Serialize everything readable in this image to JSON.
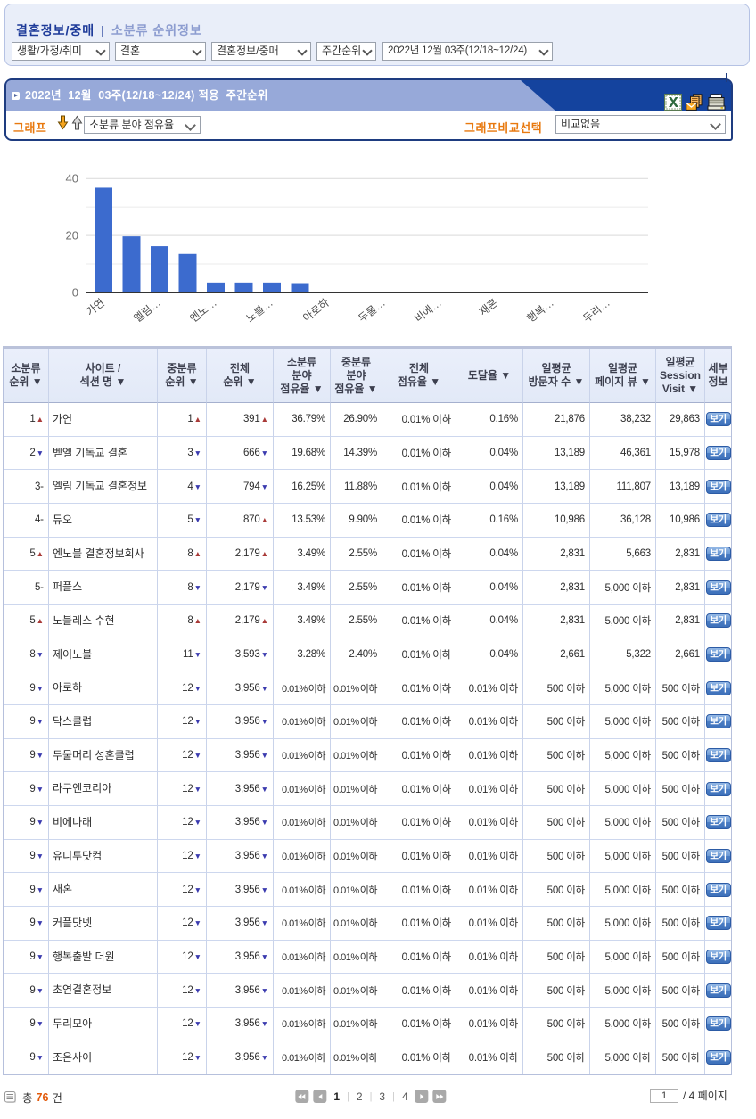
{
  "colors": {
    "navy": "#14439e",
    "panel_border": "#1e3c80",
    "periwinkle": "#97a9d9",
    "orange": "#e8790f",
    "orange2": "#e2590a",
    "filter_bg": "#e9eef9",
    "filter_border": "#b5c2e4",
    "nav_title": "#1d3a99",
    "nav_sub": "#8d9dd0",
    "bar": "#3c6bce",
    "up": "#a93a38",
    "down": "#3a3aae"
  },
  "breadcrumb": {
    "category": "결혼정보/중매",
    "separator": "|",
    "section": "소분류 순위정보"
  },
  "filters": {
    "selects": [
      {
        "name": "top-category",
        "value": "생활/가정/취미"
      },
      {
        "name": "mid-category",
        "value": "결혼"
      },
      {
        "name": "sub-category",
        "value": "결혼정보/중매"
      },
      {
        "name": "period-type",
        "value": "주간순위"
      },
      {
        "name": "week",
        "value": "2022년 12월 03주(12/18~12/24)"
      }
    ]
  },
  "panel": {
    "title": "2022년  12월  03주(12/18~12/24) 적용  주간순위",
    "icons": [
      "excel-icon",
      "mail-icon",
      "print-icon"
    ],
    "graph_label": "그래프",
    "graph_select": "소분류 분야 점유율",
    "compare_label": "그래프비교선택",
    "compare_select": "비교없음"
  },
  "chart_data": {
    "type": "bar",
    "title": "소분류 분야 점유율",
    "categories": [
      "가연",
      "벧엘 기독교 결혼",
      "엘림 기독교 결혼정보",
      "듀오",
      "엔노블 결혼정보회사",
      "퍼플스",
      "노블레스 수현",
      "제이노블",
      "아로하",
      "닥스클럽",
      "두물머리 성혼클럽",
      "라쿠엔코리아",
      "비에나래",
      "유니투닷컴",
      "재혼",
      "커플닷넷",
      "행복출발 더원",
      "초연결혼정보",
      "두리모아",
      "조은사이"
    ],
    "values": [
      36.79,
      19.68,
      16.25,
      13.53,
      3.49,
      3.49,
      3.49,
      3.28,
      0.01,
      0.01,
      0.01,
      0.01,
      0.01,
      0.01,
      0.01,
      0.01,
      0.01,
      0.01,
      0.01,
      0.01
    ],
    "tick_labels": [
      "가연",
      "엘림…",
      "엔노…",
      "노블…",
      "아로하",
      "두물…",
      "비에…",
      "재혼",
      "행복…",
      "두리…"
    ],
    "tick_every": 2,
    "xlabel": "",
    "ylabel": "",
    "ylim": [
      0,
      40
    ],
    "yticks": [
      0,
      20,
      40
    ],
    "minor_gridlines": [
      10,
      30
    ],
    "grid": true,
    "legend": "none",
    "bar_color": "#3c6bce"
  },
  "table": {
    "headers": [
      "소분류\n순위 ▼",
      "사이트 /\n섹션 명 ▼",
      "중분류\n순위 ▼",
      "전체\n순위 ▼",
      "소분류\n분야\n점유율 ▼",
      "중분류\n분야\n점유율 ▼",
      "전체\n점유율 ▼",
      "도달율 ▼",
      "일평균\n방문자 수 ▼",
      "일평균\n페이지 뷰 ▼",
      "일평균\nSession\nVisit ▼",
      "세부\n정보"
    ],
    "view_label": "보기",
    "rows": [
      {
        "rank": {
          "v": "1",
          "d": "up"
        },
        "name": "가연",
        "mid": {
          "v": "1",
          "d": "up"
        },
        "total": {
          "v": "391",
          "d": "up"
        },
        "sub_share": "36.79%",
        "mid_share": "26.90%",
        "all_share": "0.01% 이하",
        "reach": "0.16%",
        "visitors": "21,876",
        "pageviews": "38,232",
        "sessions": "29,863"
      },
      {
        "rank": {
          "v": "2",
          "d": "down"
        },
        "name": "벧엘 기독교 결혼",
        "mid": {
          "v": "3",
          "d": "down"
        },
        "total": {
          "v": "666",
          "d": "down"
        },
        "sub_share": "19.68%",
        "mid_share": "14.39%",
        "all_share": "0.01% 이하",
        "reach": "0.04%",
        "visitors": "13,189",
        "pageviews": "46,361",
        "sessions": "15,978"
      },
      {
        "rank": {
          "v": "3",
          "d": "none"
        },
        "name": "엘림 기독교 결혼정보",
        "mid": {
          "v": "4",
          "d": "down"
        },
        "total": {
          "v": "794",
          "d": "down"
        },
        "sub_share": "16.25%",
        "mid_share": "11.88%",
        "all_share": "0.01% 이하",
        "reach": "0.04%",
        "visitors": "13,189",
        "pageviews": "111,807",
        "sessions": "13,189"
      },
      {
        "rank": {
          "v": "4",
          "d": "none"
        },
        "name": "듀오",
        "mid": {
          "v": "5",
          "d": "down"
        },
        "total": {
          "v": "870",
          "d": "up"
        },
        "sub_share": "13.53%",
        "mid_share": "9.90%",
        "all_share": "0.01% 이하",
        "reach": "0.16%",
        "visitors": "10,986",
        "pageviews": "36,128",
        "sessions": "10,986"
      },
      {
        "rank": {
          "v": "5",
          "d": "up"
        },
        "name": "엔노블 결혼정보회사",
        "mid": {
          "v": "8",
          "d": "up"
        },
        "total": {
          "v": "2,179",
          "d": "up"
        },
        "sub_share": "3.49%",
        "mid_share": "2.55%",
        "all_share": "0.01% 이하",
        "reach": "0.04%",
        "visitors": "2,831",
        "pageviews": "5,663",
        "sessions": "2,831"
      },
      {
        "rank": {
          "v": "5",
          "d": "none"
        },
        "name": "퍼플스",
        "mid": {
          "v": "8",
          "d": "down"
        },
        "total": {
          "v": "2,179",
          "d": "down"
        },
        "sub_share": "3.49%",
        "mid_share": "2.55%",
        "all_share": "0.01% 이하",
        "reach": "0.04%",
        "visitors": "2,831",
        "pageviews": "5,000 이하",
        "sessions": "2,831"
      },
      {
        "rank": {
          "v": "5",
          "d": "up"
        },
        "name": "노블레스 수현",
        "mid": {
          "v": "8",
          "d": "up"
        },
        "total": {
          "v": "2,179",
          "d": "up"
        },
        "sub_share": "3.49%",
        "mid_share": "2.55%",
        "all_share": "0.01% 이하",
        "reach": "0.04%",
        "visitors": "2,831",
        "pageviews": "5,000 이하",
        "sessions": "2,831"
      },
      {
        "rank": {
          "v": "8",
          "d": "down"
        },
        "name": "제이노블",
        "mid": {
          "v": "11",
          "d": "down"
        },
        "total": {
          "v": "3,593",
          "d": "down"
        },
        "sub_share": "3.28%",
        "mid_share": "2.40%",
        "all_share": "0.01% 이하",
        "reach": "0.04%",
        "visitors": "2,661",
        "pageviews": "5,322",
        "sessions": "2,661"
      },
      {
        "rank": {
          "v": "9",
          "d": "down"
        },
        "name": "아로하",
        "mid": {
          "v": "12",
          "d": "down"
        },
        "total": {
          "v": "3,956",
          "d": "down"
        },
        "sub_share": "0.01% 이하",
        "mid_share": "0.01% 이하",
        "all_share": "0.01% 이하",
        "reach": "0.01% 이하",
        "visitors": "500 이하",
        "pageviews": "5,000 이하",
        "sessions": "500 이하"
      },
      {
        "rank": {
          "v": "9",
          "d": "down"
        },
        "name": "닥스클럽",
        "mid": {
          "v": "12",
          "d": "down"
        },
        "total": {
          "v": "3,956",
          "d": "down"
        },
        "sub_share": "0.01% 이하",
        "mid_share": "0.01% 이하",
        "all_share": "0.01% 이하",
        "reach": "0.01% 이하",
        "visitors": "500 이하",
        "pageviews": "5,000 이하",
        "sessions": "500 이하"
      },
      {
        "rank": {
          "v": "9",
          "d": "down"
        },
        "name": "두물머리 성혼클럽",
        "mid": {
          "v": "12",
          "d": "down"
        },
        "total": {
          "v": "3,956",
          "d": "down"
        },
        "sub_share": "0.01% 이하",
        "mid_share": "0.01% 이하",
        "all_share": "0.01% 이하",
        "reach": "0.01% 이하",
        "visitors": "500 이하",
        "pageviews": "5,000 이하",
        "sessions": "500 이하"
      },
      {
        "rank": {
          "v": "9",
          "d": "down"
        },
        "name": "라쿠엔코리아",
        "mid": {
          "v": "12",
          "d": "down"
        },
        "total": {
          "v": "3,956",
          "d": "down"
        },
        "sub_share": "0.01% 이하",
        "mid_share": "0.01% 이하",
        "all_share": "0.01% 이하",
        "reach": "0.01% 이하",
        "visitors": "500 이하",
        "pageviews": "5,000 이하",
        "sessions": "500 이하"
      },
      {
        "rank": {
          "v": "9",
          "d": "down"
        },
        "name": "비에나래",
        "mid": {
          "v": "12",
          "d": "down"
        },
        "total": {
          "v": "3,956",
          "d": "down"
        },
        "sub_share": "0.01% 이하",
        "mid_share": "0.01% 이하",
        "all_share": "0.01% 이하",
        "reach": "0.01% 이하",
        "visitors": "500 이하",
        "pageviews": "5,000 이하",
        "sessions": "500 이하"
      },
      {
        "rank": {
          "v": "9",
          "d": "down"
        },
        "name": "유니투닷컴",
        "mid": {
          "v": "12",
          "d": "down"
        },
        "total": {
          "v": "3,956",
          "d": "down"
        },
        "sub_share": "0.01% 이하",
        "mid_share": "0.01% 이하",
        "all_share": "0.01% 이하",
        "reach": "0.01% 이하",
        "visitors": "500 이하",
        "pageviews": "5,000 이하",
        "sessions": "500 이하"
      },
      {
        "rank": {
          "v": "9",
          "d": "down"
        },
        "name": "재혼",
        "mid": {
          "v": "12",
          "d": "down"
        },
        "total": {
          "v": "3,956",
          "d": "down"
        },
        "sub_share": "0.01% 이하",
        "mid_share": "0.01% 이하",
        "all_share": "0.01% 이하",
        "reach": "0.01% 이하",
        "visitors": "500 이하",
        "pageviews": "5,000 이하",
        "sessions": "500 이하"
      },
      {
        "rank": {
          "v": "9",
          "d": "down"
        },
        "name": "커플닷넷",
        "mid": {
          "v": "12",
          "d": "down"
        },
        "total": {
          "v": "3,956",
          "d": "down"
        },
        "sub_share": "0.01% 이하",
        "mid_share": "0.01% 이하",
        "all_share": "0.01% 이하",
        "reach": "0.01% 이하",
        "visitors": "500 이하",
        "pageviews": "5,000 이하",
        "sessions": "500 이하"
      },
      {
        "rank": {
          "v": "9",
          "d": "down"
        },
        "name": "행복출발 더원",
        "mid": {
          "v": "12",
          "d": "down"
        },
        "total": {
          "v": "3,956",
          "d": "down"
        },
        "sub_share": "0.01% 이하",
        "mid_share": "0.01% 이하",
        "all_share": "0.01% 이하",
        "reach": "0.01% 이하",
        "visitors": "500 이하",
        "pageviews": "5,000 이하",
        "sessions": "500 이하"
      },
      {
        "rank": {
          "v": "9",
          "d": "down"
        },
        "name": "초연결혼정보",
        "mid": {
          "v": "12",
          "d": "down"
        },
        "total": {
          "v": "3,956",
          "d": "down"
        },
        "sub_share": "0.01% 이하",
        "mid_share": "0.01% 이하",
        "all_share": "0.01% 이하",
        "reach": "0.01% 이하",
        "visitors": "500 이하",
        "pageviews": "5,000 이하",
        "sessions": "500 이하"
      },
      {
        "rank": {
          "v": "9",
          "d": "down"
        },
        "name": "두리모아",
        "mid": {
          "v": "12",
          "d": "down"
        },
        "total": {
          "v": "3,956",
          "d": "down"
        },
        "sub_share": "0.01% 이하",
        "mid_share": "0.01% 이하",
        "all_share": "0.01% 이하",
        "reach": "0.01% 이하",
        "visitors": "500 이하",
        "pageviews": "5,000 이하",
        "sessions": "500 이하"
      },
      {
        "rank": {
          "v": "9",
          "d": "down"
        },
        "name": "조은사이",
        "mid": {
          "v": "12",
          "d": "down"
        },
        "total": {
          "v": "3,956",
          "d": "down"
        },
        "sub_share": "0.01% 이하",
        "mid_share": "0.01% 이하",
        "all_share": "0.01% 이하",
        "reach": "0.01% 이하",
        "visitors": "500 이하",
        "pageviews": "5,000 이하",
        "sessions": "500 이하"
      }
    ]
  },
  "footer": {
    "total_prefix": "총",
    "total_count": "76",
    "total_suffix": "건",
    "pagination": {
      "current": "1",
      "pages": [
        "1",
        "2",
        "3",
        "4"
      ]
    },
    "page_input": "1",
    "page_total_label": "/ 4 페이지"
  }
}
